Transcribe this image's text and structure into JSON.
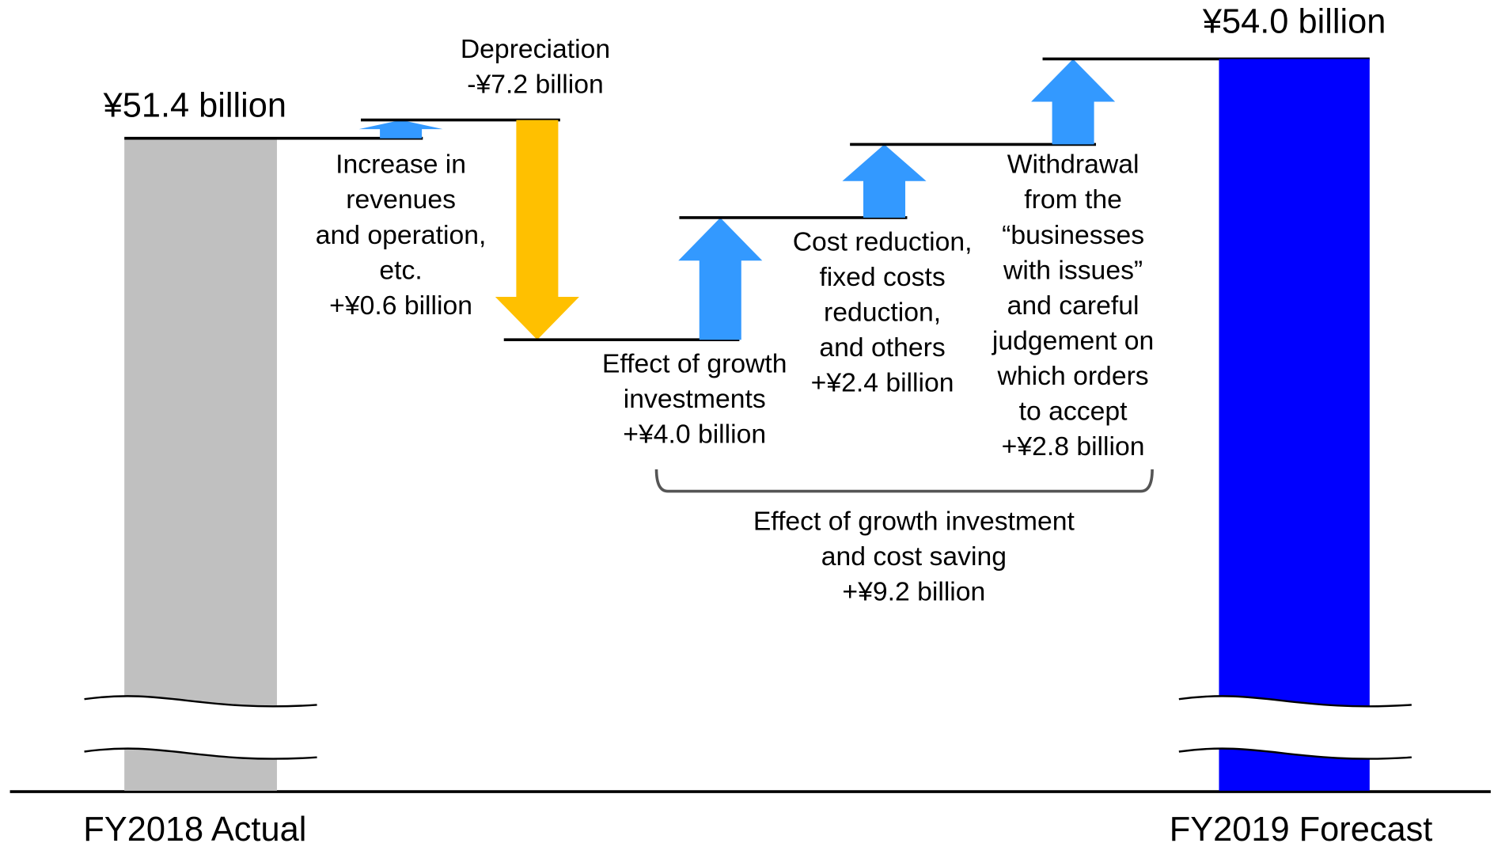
{
  "chart_data": {
    "type": "waterfall",
    "categories": [
      "FY2018 Actual",
      "Increase in\nrevenues\nand operation,\netc.",
      "Depreciation",
      "Effect of growth\ninvestments",
      "Cost reduction,\nfixed costs\nreduction,\nand others",
      "Withdrawal\nfrom the\n“businesses\nwith issues”\nand careful\njudgement on\nwhich orders\nto accept",
      "FY2019 Forecast"
    ],
    "values": [
      51.4,
      0.6,
      -7.2,
      4.0,
      2.4,
      2.8,
      54.0
    ],
    "value_labels": [
      "¥51.4 billion",
      "+¥0.6 billion",
      "-¥7.2 billion",
      "+¥4.0 billion",
      "+¥2.4 billion",
      "+¥2.8 billion",
      "¥54.0 billion"
    ],
    "colors": {
      "start": "#c0c0c0",
      "end": "#0000ff",
      "increase": "#3399ff",
      "decrease": "#ffc000"
    },
    "bracket": {
      "label": "Effect of growth investment\nand cost saving",
      "value": 9.2,
      "value_label": "+¥9.2 billion"
    }
  }
}
